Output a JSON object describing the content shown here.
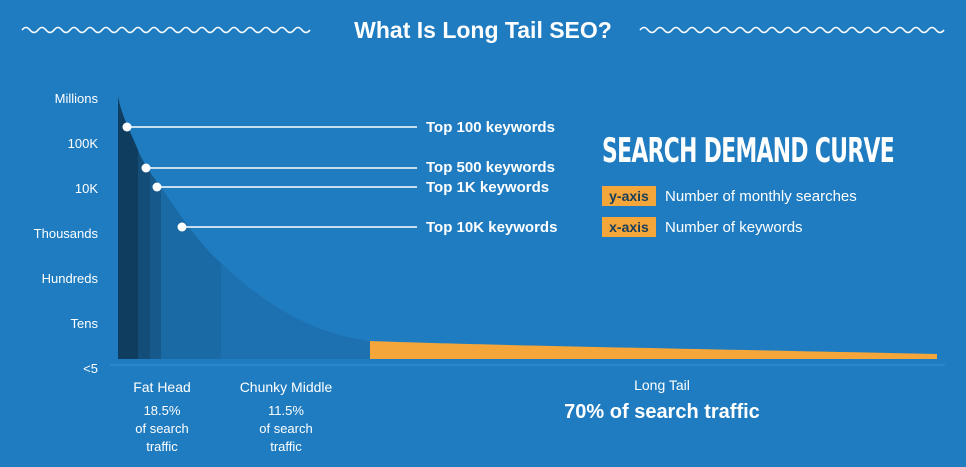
{
  "header": {
    "title": "What Is Long Tail SEO?"
  },
  "chart_data": {
    "type": "area",
    "title": "SEARCH DEMAND CURVE",
    "y_ticks": [
      "Millions",
      "100K",
      "10K",
      "Thousands",
      "Hundreds",
      "Tens",
      "<5"
    ],
    "legend": [
      {
        "badge": "y-axis",
        "text": "Number of monthly searches"
      },
      {
        "badge": "x-axis",
        "text": "Number of keywords"
      }
    ],
    "callouts": [
      {
        "label": "Top 100 keywords"
      },
      {
        "label": "Top 500 keywords"
      },
      {
        "label": "Top 1K keywords"
      },
      {
        "label": "Top 10K keywords"
      }
    ],
    "segments": [
      {
        "name": "Fat Head",
        "share_lines": [
          "18.5%",
          "of search",
          "traffic"
        ],
        "share_percent": 18.5
      },
      {
        "name": "Chunky Middle",
        "share_lines": [
          "11.5%",
          "of search",
          "traffic"
        ],
        "share_percent": 11.5
      },
      {
        "name": "Long Tail",
        "share_text": "70% of search traffic",
        "share_percent": 70
      }
    ],
    "colors": {
      "background": "#1f7cc0",
      "fat_head": "#0f3d60",
      "chunky_middle": "#1a6aa6",
      "long_tail": "#f5a63a",
      "badge": "#f5a63a"
    }
  }
}
